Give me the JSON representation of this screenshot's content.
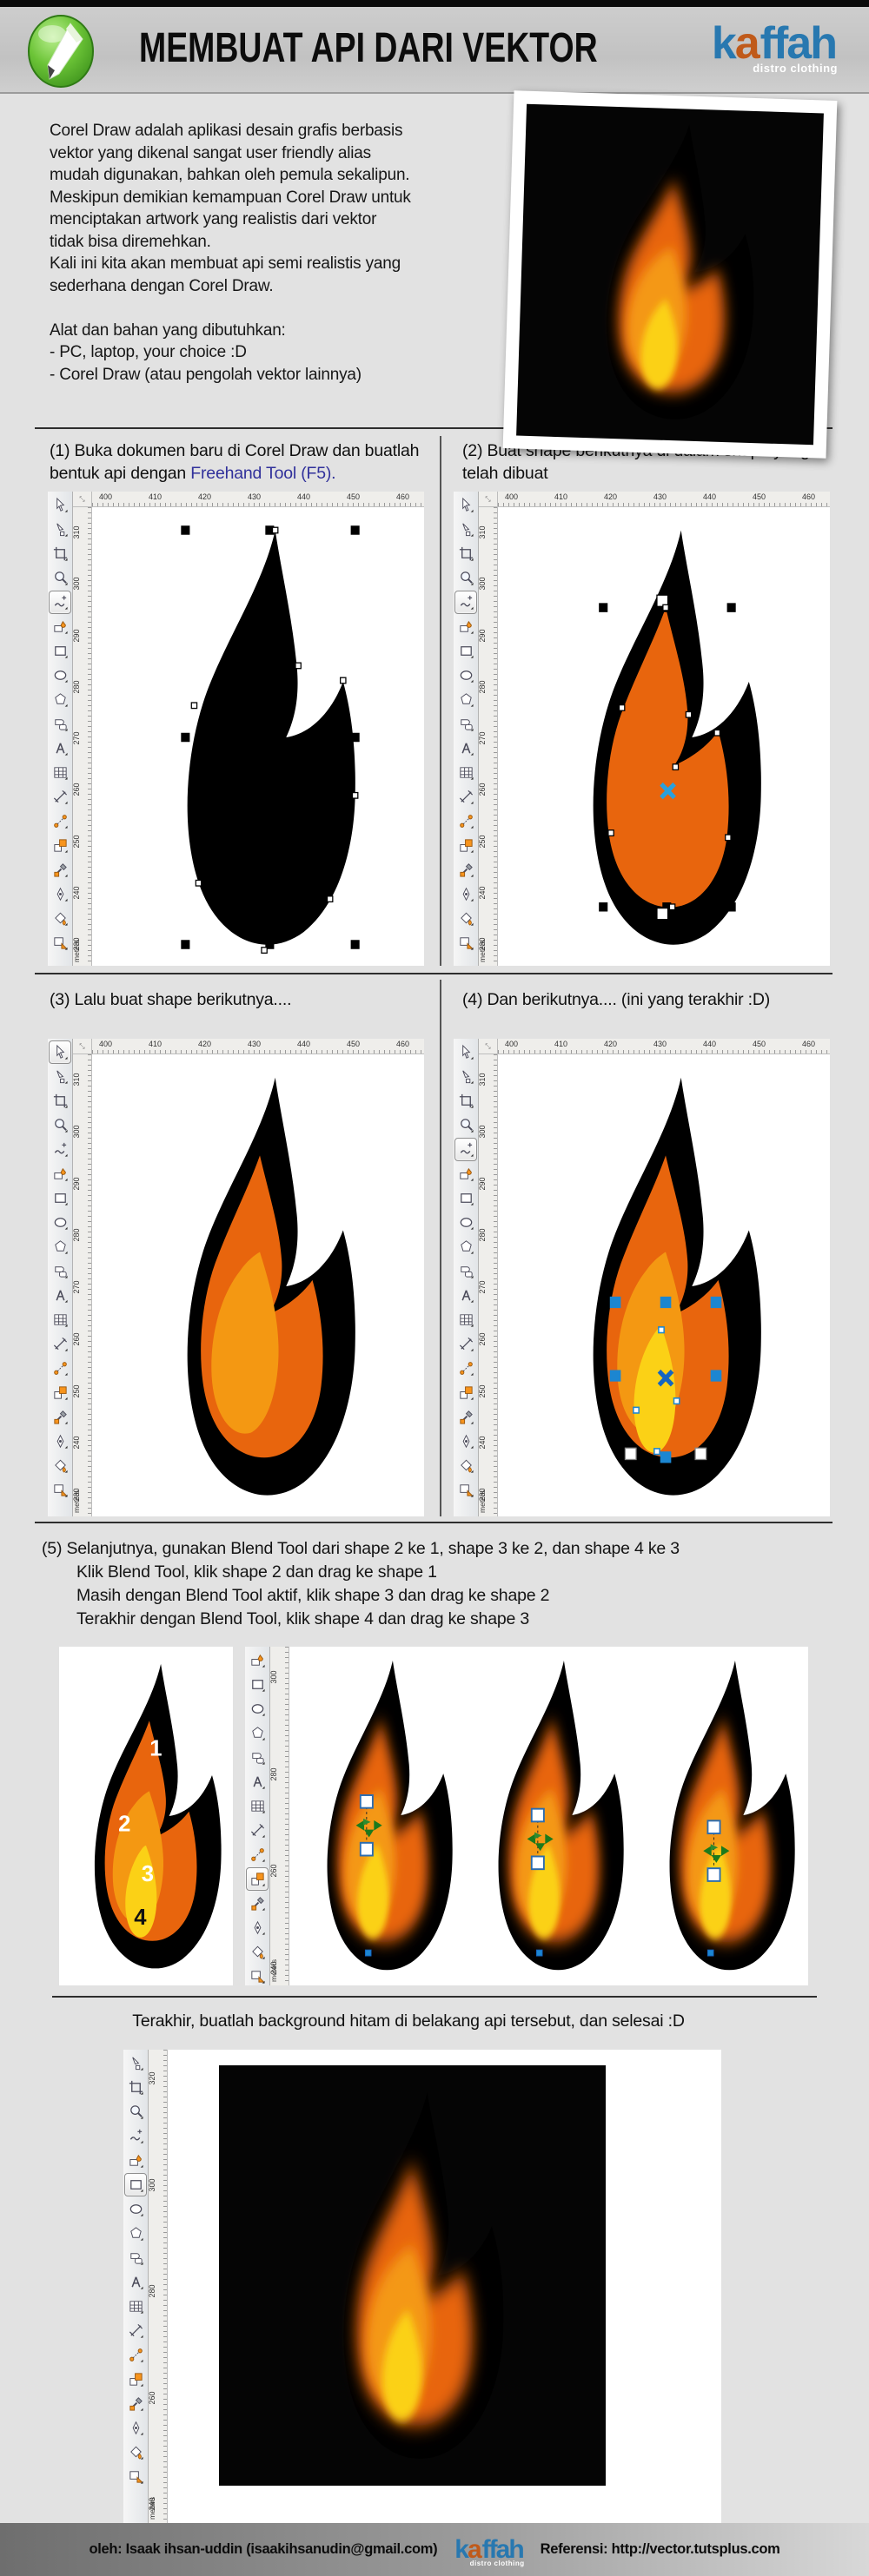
{
  "header": {
    "title": "MEMBUAT API DARI VEKTOR",
    "logo_word_start": "k",
    "logo_word_accent": "a",
    "logo_word_end": "ffah",
    "logo_sub": "distro clothing",
    "app_icon": "coreldraw-pencil-icon"
  },
  "intro": {
    "paragraph": "Corel Draw adalah aplikasi desain grafis berbasis\nvektor yang dikenal sangat user friendly alias\nmudah digunakan, bahkan oleh pemula sekalipun.\nMeskipun demikian kemampuan Corel Draw untuk\nmenciptakan artwork yang realistis dari vektor\ntidak bisa diremehkan.\nKali ini kita akan membuat api semi realistis yang\nsederhana dengan Corel Draw.\n\nAlat dan bahan yang dibutuhkan:\n- PC, laptop, your choice :D\n- Corel Draw (atau pengolah vektor lainnya)"
  },
  "steps": {
    "step1_prefix": "(1) Buka dokumen baru di Corel Draw dan buatlah bentuk api dengan ",
    "step1_link": "Freehand Tool (F5).",
    "step2": "(2) Buat shape berikutnya di dalam shape yang telah dibuat",
    "step3": "(3)  Lalu buat shape berikutnya....",
    "step4": "(4) Dan berikutnya.... (ini yang terakhir :D)",
    "step5_line1": "(5) Selanjutnya, gunakan Blend Tool dari shape 2 ke 1, shape 3 ke 2, dan shape 4 ke 3",
    "step5_line2": "Klik Blend Tool, klik shape 2 dan drag ke shape 1",
    "step5_line3": "Masih dengan Blend Tool aktif, klik shape 3 dan drag ke shape 2",
    "step5_line4": "Terakhir dengan Blend Tool, klik shape 4 dan drag ke shape 3"
  },
  "final_caption": "Terakhir, buatlah background hitam di belakang api tersebut, dan selesai :D",
  "footer": {
    "author": "oleh: Isaak ihsan-uddin (isaakihsanudin@gmail.com)",
    "reference": "Referensi: http://vector.tutsplus.com"
  },
  "editor": {
    "unit": "meters",
    "tools": [
      "pick-tool",
      "shape-tool",
      "crop-tool",
      "zoom-tool",
      "freehand-tool",
      "smart-fill-tool",
      "rectangle-tool",
      "ellipse-tool",
      "polygon-tool",
      "basic-shapes-tool",
      "text-tool",
      "table-tool",
      "dimension-tool",
      "connector-tool",
      "blend-tool",
      "color-eyedropper-tool",
      "pen-tool",
      "fill-tool",
      "interactive-fill-tool"
    ],
    "h_ruler": [
      "400",
      "410",
      "420",
      "430",
      "440",
      "450",
      "460"
    ],
    "v_ruler_full": [
      "310",
      "300",
      "290",
      "280",
      "270",
      "260",
      "250",
      "240",
      "230"
    ],
    "v_ruler_step5": [
      "300",
      "280",
      "260",
      "240"
    ],
    "v_ruler_final": [
      "320",
      "300",
      "280",
      "260",
      "240"
    ]
  },
  "fire_numbers": [
    "1",
    "2",
    "3",
    "4"
  ],
  "colors": {
    "flame_outline": "#000000",
    "flame_shape2": "#E8650D",
    "flame_shape3": "#F49812",
    "flame_shape4": "#FBD116",
    "link": "#31319B",
    "selection_blue": "#2AA0DC",
    "handle_blue": "#1C86D1",
    "logo_blue": "#2878B0",
    "logo_orange": "#C05A1A"
  }
}
